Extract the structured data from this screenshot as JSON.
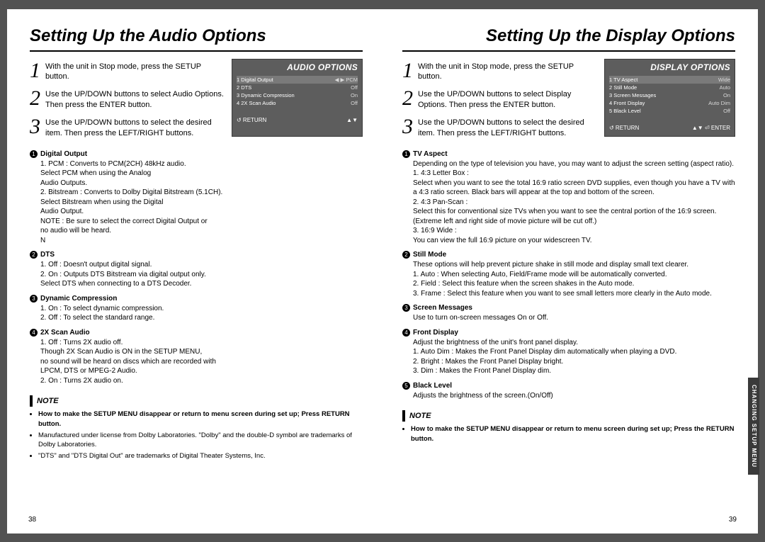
{
  "colors": {
    "pageBg": "#ffffff",
    "bodyBg": "#525252",
    "osdBg": "#5d5d5d",
    "text": "#000000"
  },
  "left": {
    "title": "Setting Up the Audio Options",
    "steps": [
      "With the unit in Stop mode, press the SETUP button.",
      "Use the UP/DOWN buttons to select Audio Options. Then press the ENTER button.",
      "Use the UP/DOWN buttons to select the desired item. Then press the LEFT/RIGHT buttons."
    ],
    "osd": {
      "title": "AUDIO OPTIONS",
      "rows": [
        {
          "n": "1",
          "l": "Digital Output",
          "r": "◀ ▶ PCM",
          "sel": true
        },
        {
          "n": "2",
          "l": "DTS",
          "r": "Off"
        },
        {
          "n": "3",
          "l": "Dynamic Compression",
          "r": "On"
        },
        {
          "n": "4",
          "l": "2X Scan Audio",
          "r": "Off"
        }
      ],
      "footerL": "↺ RETURN",
      "footerR": "▲▼"
    },
    "details": [
      {
        "n": "1",
        "head": "Digital Output",
        "body": "1. PCM : Converts to PCM(2CH) 48kHz audio.\n   Select PCM when using the Analog\n   Audio Outputs.\n2. Bitstream : Converts to Dolby Digital Bitstream (5.1CH).\n   Select Bitstream when using the Digital\n   Audio Output.\nNOTE : Be sure to select the correct Digital Output or\n   no audio will be heard.\nN"
      },
      {
        "n": "2",
        "head": "DTS",
        "body": "1. Off : Doesn't output digital signal.\n2. On : Outputs DTS Bitstream via digital output only.\n   Select DTS when connecting to a DTS Decoder."
      },
      {
        "n": "3",
        "head": "Dynamic Compression",
        "body": "1. On : To select dynamic compression.\n2. Off : To select the standard range."
      },
      {
        "n": "4",
        "head": "2X Scan Audio",
        "body": "1. Off : Turns 2X audio off.\n   Though 2X Scan Audio is ON in the SETUP MENU,\n   no sound will be heard on discs which are recorded with\n   LPCM, DTS or MPEG-2 Audio.\n2. On : Turns 2X audio on."
      }
    ],
    "noteLabel": "NOTE",
    "notes": [
      "How to make the SETUP MENU disappear or return to menu screen during set up; Press RETURN button.",
      "Manufactured under license from Dolby Laboratories. \"Dolby\" and the double-D symbol are trademarks of Dolby Laboratories.",
      "\"DTS\" and \"DTS Digital Out\" are trademarks of Digital Theater Systems, Inc."
    ],
    "pageNum": "38"
  },
  "right": {
    "title": "Setting Up the Display Options",
    "steps": [
      "With the unit in Stop mode, press the SETUP button.",
      "Use the UP/DOWN buttons to select Display Options. Then press the ENTER button.",
      "Use the UP/DOWN buttons to select the desired item. Then press the LEFT/RIGHT buttons."
    ],
    "osd": {
      "title": "DISPLAY OPTIONS",
      "rows": [
        {
          "n": "1",
          "l": "TV Aspect",
          "r": "Wide",
          "sel": true
        },
        {
          "n": "2",
          "l": "Still Mode",
          "r": "Auto"
        },
        {
          "n": "3",
          "l": "Screen Messages",
          "r": "On"
        },
        {
          "n": "4",
          "l": "Front Display",
          "r": "Auto Dim"
        },
        {
          "n": "5",
          "l": "Black Level",
          "r": "Off"
        }
      ],
      "footerL": "↺ RETURN",
      "footerR": "▲▼ ⏎ ENTER"
    },
    "details": [
      {
        "n": "1",
        "head": "TV Aspect",
        "body": "Depending on the type of television you have, you may want to adjust the screen setting (aspect ratio).\n1. 4:3 Letter Box :\n   Select when you want to see the total 16:9 ratio screen DVD supplies, even though you have a TV with a 4:3 ratio screen. Black bars will appear at the top and bottom of the screen.\n2. 4:3 Pan-Scan :\n   Select this for conventional size TVs when you want to see the central portion of the 16:9 screen. (Extreme left and right side of movie picture will be cut off.)\n3. 16:9 Wide :\n   You can view the full 16:9 picture on your widescreen TV."
      },
      {
        "n": "2",
        "head": "Still Mode",
        "body": "These options will help prevent picture shake in still mode and display small text clearer.\n1. Auto : When selecting Auto, Field/Frame mode will be automatically converted.\n2. Field : Select this feature when the screen shakes in the Auto mode.\n3. Frame : Select this feature when you want to see small letters more clearly in the Auto mode."
      },
      {
        "n": "3",
        "head": "Screen Messages",
        "body": "Use to turn on-screen messages On or Off."
      },
      {
        "n": "4",
        "head": "Front Display",
        "body": "Adjust the brightness of the unit's front panel display.\n1. Auto Dim : Makes the Front Panel Display dim automatically when playing a DVD.\n2. Bright : Makes the Front Panel Display bright.\n3. Dim : Makes the Front Panel Display dim."
      },
      {
        "n": "5",
        "head": "Black Level",
        "body": "Adjusts the brightness of the screen.(On/Off)"
      }
    ],
    "noteLabel": "NOTE",
    "notes": [
      "How to make the SETUP MENU disappear or return to menu screen during set up; Press the RETURN button."
    ],
    "pageNum": "39",
    "sideTab": "CHANGING\nSETUP MENU"
  }
}
